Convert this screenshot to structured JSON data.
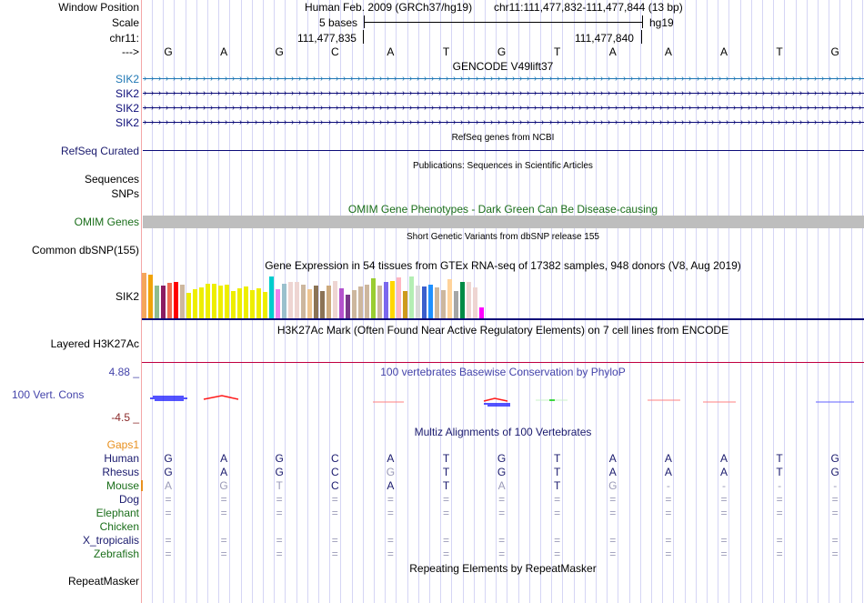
{
  "header": {
    "window_position_label": "Window Position",
    "assembly": "Human Feb. 2009 (GRCh37/hg19)",
    "position": "chr11:111,477,832-111,477,844 (13 bp)",
    "scale_label": "Scale",
    "scale_text": "5 bases",
    "scale_db": "hg19",
    "chrom_label": "chr11:",
    "coord_left": "111,477,835",
    "coord_right": "111,477,840",
    "strand_label": "--->",
    "sequence": [
      "G",
      "A",
      "G",
      "C",
      "A",
      "T",
      "G",
      "T",
      "A",
      "A",
      "A",
      "T",
      "G"
    ]
  },
  "tracks": {
    "gencode": {
      "title": "GENCODE V49lift37",
      "items": [
        {
          "label": "SIK2",
          "color": "#1f77b4"
        },
        {
          "label": "SIK2",
          "color": "#0c0c78"
        },
        {
          "label": "SIK2",
          "color": "#0c0c78"
        },
        {
          "label": "SIK2",
          "color": "#0c0c78"
        }
      ]
    },
    "refseq": {
      "label": "RefSeq Curated",
      "title": "RefSeq genes from NCBI"
    },
    "publications": {
      "label_line1": "Sequences",
      "label_line2": "SNPs",
      "title": "Publications: Sequences in Scientific Articles"
    },
    "omim": {
      "label": "OMIM Genes",
      "title": "OMIM Gene Phenotypes - Dark Green Can Be Disease-causing"
    },
    "dbsnp": {
      "label": "Common dbSNP(155)",
      "title": "Short Genetic Variants from dbSNP release 155"
    },
    "gtex": {
      "label": "SIK2",
      "title": "Gene Expression in 54 tissues from GTEx RNA-seq of 17382 samples, 948 donors (V8, Aug 2019)",
      "bars": [
        {
          "v": 1.0,
          "c": "#f5a65b"
        },
        {
          "v": 0.96,
          "c": "#f0a30a"
        },
        {
          "v": 0.72,
          "c": "#8fbc8f"
        },
        {
          "v": 0.72,
          "c": "#8b1c62"
        },
        {
          "v": 0.78,
          "c": "#ee6a50"
        },
        {
          "v": 0.8,
          "c": "#ff0000"
        },
        {
          "v": 0.74,
          "c": "#cdb79e"
        },
        {
          "v": 0.56,
          "c": "#eeee00"
        },
        {
          "v": 0.64,
          "c": "#eeee00"
        },
        {
          "v": 0.68,
          "c": "#eeee00"
        },
        {
          "v": 0.76,
          "c": "#eeee00"
        },
        {
          "v": 0.76,
          "c": "#eeee00"
        },
        {
          "v": 0.72,
          "c": "#eeee00"
        },
        {
          "v": 0.74,
          "c": "#eeee00"
        },
        {
          "v": 0.6,
          "c": "#eeee00"
        },
        {
          "v": 0.66,
          "c": "#eeee00"
        },
        {
          "v": 0.7,
          "c": "#eeee00"
        },
        {
          "v": 0.62,
          "c": "#eeee00"
        },
        {
          "v": 0.66,
          "c": "#eeee00"
        },
        {
          "v": 0.58,
          "c": "#eeee00"
        },
        {
          "v": 0.92,
          "c": "#00cdcd"
        },
        {
          "v": 0.64,
          "c": "#ee82ee"
        },
        {
          "v": 0.76,
          "c": "#9ac0cd"
        },
        {
          "v": 0.8,
          "c": "#eed5d2"
        },
        {
          "v": 0.8,
          "c": "#eed5d2"
        },
        {
          "v": 0.74,
          "c": "#cdb79e"
        },
        {
          "v": 0.64,
          "c": "#eec591"
        },
        {
          "v": 0.72,
          "c": "#8b7355"
        },
        {
          "v": 0.6,
          "c": "#8b7355"
        },
        {
          "v": 0.72,
          "c": "#cdaa7d"
        },
        {
          "v": 0.82,
          "c": "#eed5d2"
        },
        {
          "v": 0.66,
          "c": "#b452cd"
        },
        {
          "v": 0.52,
          "c": "#7a378b"
        },
        {
          "v": 0.62,
          "c": "#cdb79e"
        },
        {
          "v": 0.7,
          "c": "#cdb79e"
        },
        {
          "v": 0.74,
          "c": "#cdb79e"
        },
        {
          "v": 0.88,
          "c": "#9acd32"
        },
        {
          "v": 0.72,
          "c": "#cdb79e"
        },
        {
          "v": 0.8,
          "c": "#7b68ee"
        },
        {
          "v": 0.82,
          "c": "#ffd700"
        },
        {
          "v": 0.9,
          "c": "#ffb6c1"
        },
        {
          "v": 0.6,
          "c": "#cd9b1d"
        },
        {
          "v": 0.92,
          "c": "#b4eeb4"
        },
        {
          "v": 0.72,
          "c": "#d9d9d9"
        },
        {
          "v": 0.7,
          "c": "#3a5fcd"
        },
        {
          "v": 0.74,
          "c": "#1e90ff"
        },
        {
          "v": 0.68,
          "c": "#cdb79e"
        },
        {
          "v": 0.62,
          "c": "#cdb79e"
        },
        {
          "v": 0.86,
          "c": "#ffd39b"
        },
        {
          "v": 0.6,
          "c": "#a6a6a6"
        },
        {
          "v": 0.8,
          "c": "#008b45"
        },
        {
          "v": 0.8,
          "c": "#eed5d2"
        },
        {
          "v": 0.68,
          "c": "#eed5d2"
        },
        {
          "v": 0.24,
          "c": "#ff00ff"
        }
      ]
    },
    "h3k27ac": {
      "label": "Layered H3K27Ac",
      "title": "H3K27Ac Mark (Often Found Near Active Regulatory Elements) on 7 cell lines from ENCODE"
    },
    "phylop": {
      "label": "100 Vert. Cons",
      "max_label": "4.88 _",
      "min_label": "-4.5 _",
      "title": "100 vertebrates Basewise Conservation by PhyloP"
    },
    "multiz": {
      "title": "Multiz Alignments of 100 Vertebrates",
      "gaps_label": "Gaps1",
      "species": [
        {
          "name": "Human",
          "color": "navy",
          "bases": [
            "G",
            "A",
            "G",
            "C",
            "A",
            "T",
            "G",
            "T",
            "A",
            "A",
            "A",
            "T",
            "G"
          ],
          "dim": []
        },
        {
          "name": "Rhesus",
          "color": "navy",
          "bases": [
            "G",
            "A",
            "G",
            "C",
            "G",
            "T",
            "G",
            "T",
            "A",
            "A",
            "A",
            "T",
            "G"
          ],
          "dim": [
            4
          ]
        },
        {
          "name": "Mouse",
          "color": "green",
          "bases": [
            "A",
            "G",
            "T",
            "C",
            "A",
            "T",
            "A",
            "T",
            "G",
            "-",
            "-",
            "-",
            "-"
          ],
          "dim": [
            0,
            1,
            2,
            6,
            8,
            9,
            10,
            11,
            12
          ]
        },
        {
          "name": "Dog",
          "color": "navy",
          "bases": [
            "=",
            "=",
            "=",
            "=",
            "=",
            "=",
            "=",
            "=",
            "=",
            "=",
            "=",
            "=",
            "="
          ],
          "dim": [
            0,
            1,
            2,
            3,
            4,
            5,
            6,
            7,
            8,
            9,
            10,
            11,
            12
          ]
        },
        {
          "name": "Elephant",
          "color": "green",
          "bases": [
            "=",
            "=",
            "=",
            "=",
            "=",
            "=",
            "=",
            "=",
            "=",
            "=",
            "=",
            "=",
            "="
          ],
          "dim": [
            0,
            1,
            2,
            3,
            4,
            5,
            6,
            7,
            8,
            9,
            10,
            11,
            12
          ]
        },
        {
          "name": "Chicken",
          "color": "green",
          "bases": [],
          "dim": []
        },
        {
          "name": "X_tropicalis",
          "color": "navy",
          "bases": [
            "=",
            "=",
            "=",
            "=",
            "=",
            "=",
            "=",
            "=",
            "=",
            "=",
            "=",
            "=",
            "="
          ],
          "dim": [
            0,
            1,
            2,
            3,
            4,
            5,
            6,
            7,
            8,
            9,
            10,
            11,
            12
          ]
        },
        {
          "name": "Zebrafish",
          "color": "green",
          "bases": [
            "=",
            "=",
            "=",
            "=",
            "=",
            "=",
            "=",
            "=",
            "=",
            "=",
            "=",
            "=",
            "="
          ],
          "dim": [
            0,
            1,
            2,
            3,
            4,
            5,
            6,
            7,
            8,
            9,
            10,
            11,
            12
          ]
        }
      ]
    },
    "repeatmasker": {
      "label": "RepeatMasker",
      "title": "Repeating Elements by RepeatMasker"
    }
  },
  "colors": {
    "navy": "#1a1a6e",
    "green": "#1a6e1a",
    "gaps": "#e8901e",
    "omim_bar": "#bebebe",
    "phylop_min": "#8b2a2a",
    "phylop_label": "#4444aa"
  }
}
